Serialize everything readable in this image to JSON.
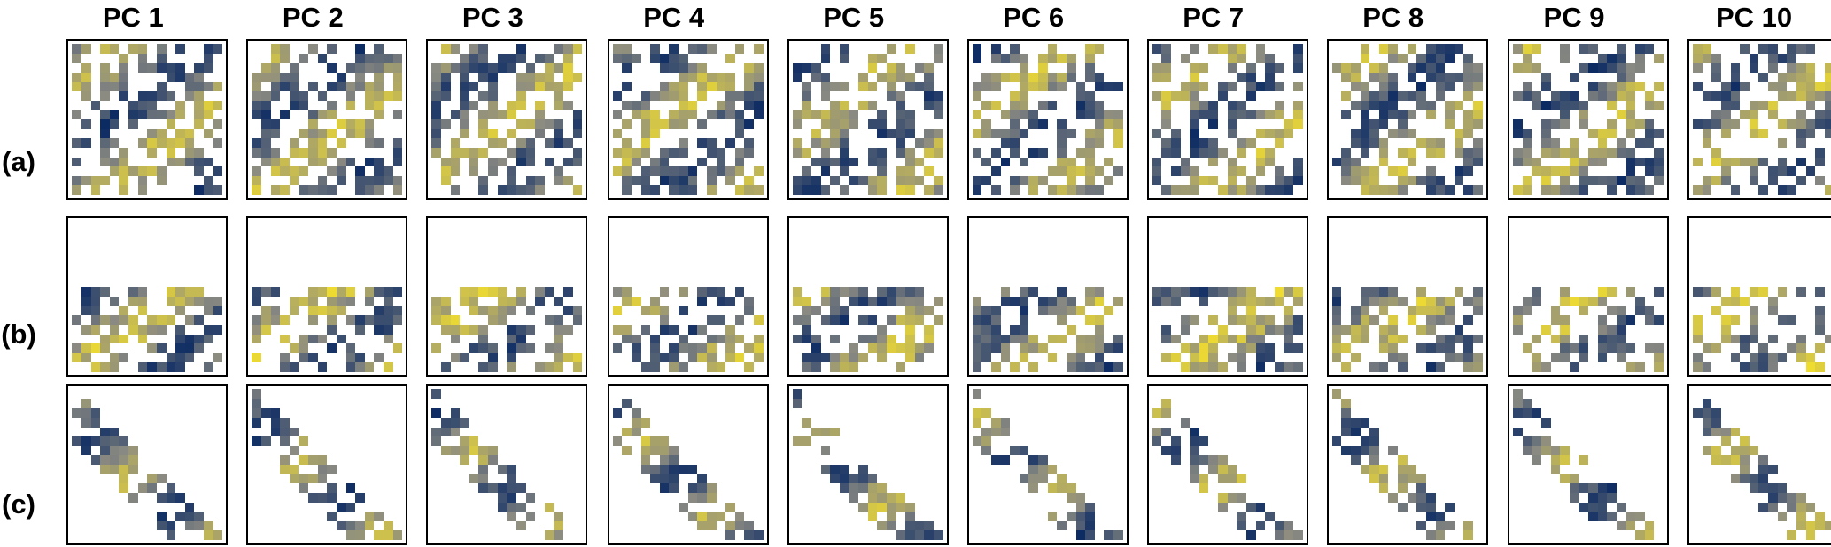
{
  "columns": [
    "PC 1",
    "PC 2",
    "PC 3",
    "PC 4",
    "PC 5",
    "PC 6",
    "PC 7",
    "PC 8",
    "PC 9",
    "PC 10"
  ],
  "rows": [
    "(a)",
    "(b)",
    "(c)"
  ],
  "colors": {
    "low": "#0b2a63",
    "mid": "#8a8a82",
    "high": "#fde725",
    "background": "#ffffff",
    "frame": "#000000"
  }
}
